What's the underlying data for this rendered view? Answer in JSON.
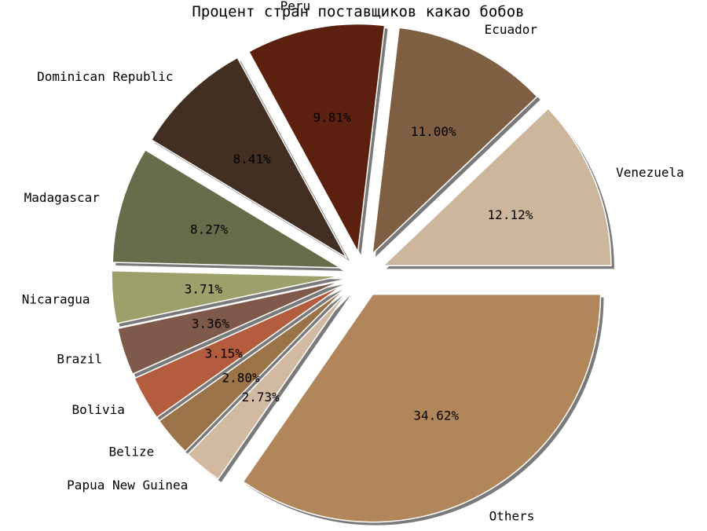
{
  "chart_data": {
    "type": "pie",
    "title": "Процент стран поставщиков какао бобов",
    "slices": [
      {
        "label": "Venezuela",
        "value": 12.12,
        "pct_label": "12.12%",
        "color": "#CDB79C"
      },
      {
        "label": "Ecuador",
        "value": 11.0,
        "pct_label": "11.00%",
        "color": "#7F5F42"
      },
      {
        "label": "Peru",
        "value": 9.81,
        "pct_label": "9.81%",
        "color": "#5C210E"
      },
      {
        "label": "Dominican Republic",
        "value": 8.41,
        "pct_label": "8.41%",
        "color": "#432E22"
      },
      {
        "label": "Madagascar",
        "value": 8.27,
        "pct_label": "8.27%",
        "color": "#676C4A"
      },
      {
        "label": "Nicaragua",
        "value": 3.71,
        "pct_label": "3.71%",
        "color": "#9EA06B"
      },
      {
        "label": "Brazil",
        "value": 3.36,
        "pct_label": "3.36%",
        "color": "#7F5A4A"
      },
      {
        "label": "Bolivia",
        "value": 3.15,
        "pct_label": "3.15%",
        "color": "#B45C3E"
      },
      {
        "label": "Belize",
        "value": 2.8,
        "pct_label": "2.80%",
        "color": "#9A7448"
      },
      {
        "label": "Papua New Guinea",
        "value": 2.73,
        "pct_label": "2.73%",
        "color": "#D2B9A2"
      },
      {
        "label": "Others",
        "value": 34.62,
        "pct_label": "34.62%",
        "color": "#B0865A"
      }
    ]
  }
}
